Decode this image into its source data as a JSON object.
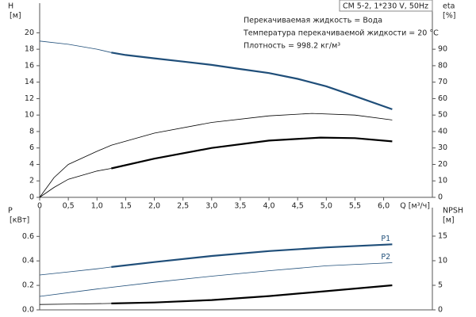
{
  "chart_data": [
    {
      "type": "line",
      "title": "CM 5-2, 1*230 V, 50Hz",
      "notes": [
        "Перекачиваемая жидкость = Вода",
        "Температура перекачиваемой жидкости = 20 °C",
        "Плотность = 998.2 кг/м³"
      ],
      "y_label": [
        "H",
        "[м]"
      ],
      "y2_label": [
        "eta",
        "[%]"
      ],
      "x_label": "Q [м³/ч]",
      "xlim": [
        0,
        6.85
      ],
      "ylim": [
        0,
        23.6
      ],
      "y2lim": [
        0,
        118
      ],
      "xticks": [
        0,
        {
          "value": 0.5,
          "label": "0,5"
        },
        {
          "value": 1,
          "label": "1,0"
        },
        {
          "value": 1.5,
          "label": "1,5"
        },
        {
          "value": 2,
          "label": "2,0"
        },
        {
          "value": 2.5,
          "label": "2,5"
        },
        {
          "value": 3,
          "label": "3,0"
        },
        {
          "value": 3.5,
          "label": "3,5"
        },
        {
          "value": 4,
          "label": "4,0"
        },
        {
          "value": 4.5,
          "label": "4,5"
        },
        {
          "value": 5,
          "label": "5,0"
        },
        {
          "value": 5.5,
          "label": "5,5"
        },
        {
          "value": 6,
          "label": "6,0"
        }
      ],
      "yticks": [
        0,
        2,
        4,
        6,
        8,
        10,
        12,
        14,
        16,
        18,
        20
      ],
      "y2ticks": [
        0,
        10,
        20,
        30,
        40,
        50,
        60,
        70,
        80,
        90
      ],
      "series": [
        {
          "color": "#1f4e79",
          "width": 0.8,
          "x": [
            0,
            0.5,
            1.0,
            1.25
          ],
          "values": [
            19.0,
            18.6,
            18.0,
            17.6
          ]
        },
        {
          "color": "#1f4e79",
          "width": 2.2,
          "x": [
            1.25,
            1.5,
            2.0,
            2.5,
            3.0,
            3.5,
            4.0,
            4.5,
            5.0,
            5.5,
            6.15
          ],
          "values": [
            17.6,
            17.3,
            16.9,
            16.5,
            16.1,
            15.6,
            15.1,
            14.4,
            13.5,
            12.3,
            10.7
          ]
        },
        {
          "color": "#000000",
          "width": 0.8,
          "axis": "y2",
          "x": [
            0,
            0.25,
            0.5,
            1.0,
            1.25,
            2.0,
            3.0,
            4.0,
            4.75,
            5.5,
            6.15
          ],
          "values": [
            0,
            12,
            20,
            28,
            31.7,
            39,
            45.5,
            49.5,
            51,
            50,
            47
          ]
        },
        {
          "color": "#000000",
          "width": 0.8,
          "axis": "y2",
          "x": [
            0,
            0.25,
            0.5,
            1.0,
            1.25
          ],
          "values": [
            0,
            6,
            11,
            16,
            17.6
          ]
        },
        {
          "color": "#000000",
          "width": 2.2,
          "axis": "y2",
          "x": [
            1.25,
            2.0,
            3.0,
            4.0,
            4.9,
            5.5,
            6.15
          ],
          "values": [
            17.6,
            23.5,
            30,
            34.5,
            36.3,
            36,
            34
          ]
        }
      ]
    },
    {
      "type": "line",
      "y_label": [
        "P",
        "[кВт]"
      ],
      "y2_label": [
        "NPSH",
        "[м]"
      ],
      "xlim": [
        0,
        6.85
      ],
      "ylim": [
        0,
        0.835
      ],
      "y2lim": [
        0,
        20.8
      ],
      "yticks": [
        {
          "value": 0,
          "label": "0.0"
        },
        0.2,
        0.4,
        0.6
      ],
      "y2ticks": [
        0,
        5,
        10,
        15
      ],
      "series": [
        {
          "color": "#1f4e79",
          "width": 0.8,
          "x": [
            0,
            0.5,
            1.0,
            1.25
          ],
          "values": [
            0.285,
            0.31,
            0.335,
            0.35
          ]
        },
        {
          "color": "#1f4e79",
          "width": 2.2,
          "label": "P1",
          "x": [
            1.25,
            2,
            3,
            4,
            5,
            6.15
          ],
          "values": [
            0.35,
            0.39,
            0.44,
            0.48,
            0.51,
            0.535
          ]
        },
        {
          "color": "#1f4e79",
          "width": 0.8,
          "label": "P2",
          "x": [
            0,
            1,
            2,
            3,
            4,
            5,
            6.15
          ],
          "values": [
            0.11,
            0.17,
            0.225,
            0.275,
            0.32,
            0.36,
            0.385
          ]
        },
        {
          "color": "#000000",
          "width": 0.8,
          "axis": "y2",
          "x": [
            0,
            0.6,
            1.25
          ],
          "values": [
            1.1,
            1.2,
            1.3
          ]
        },
        {
          "color": "#000000",
          "width": 2.2,
          "axis": "y2",
          "x": [
            1.25,
            2,
            3,
            4,
            5,
            6.15
          ],
          "values": [
            1.3,
            1.5,
            2.0,
            2.8,
            3.8,
            5.0
          ]
        }
      ]
    }
  ]
}
